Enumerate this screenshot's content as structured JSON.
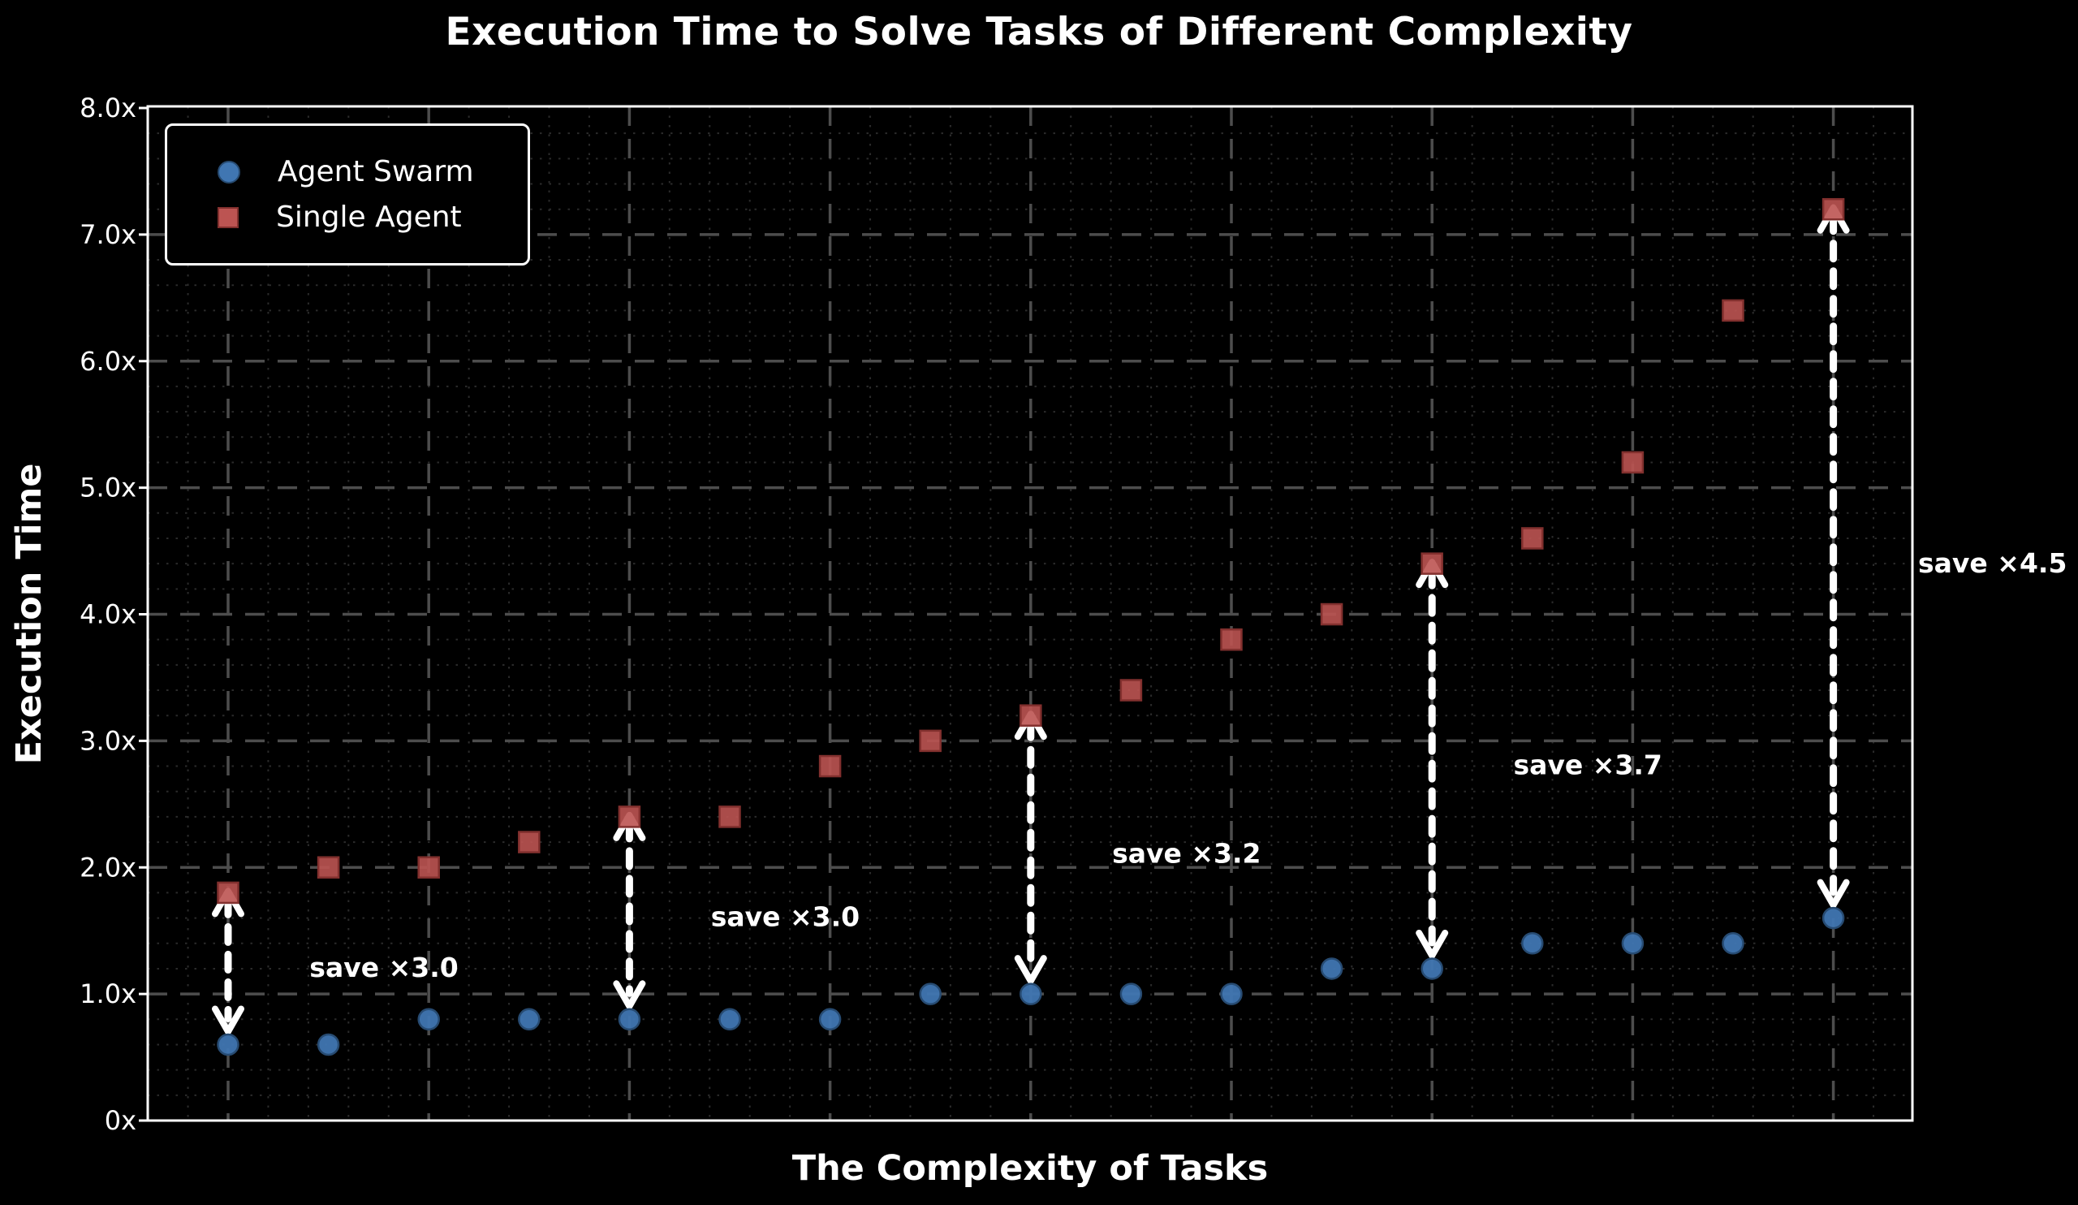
{
  "chart_data": {
    "type": "scatter",
    "title": "Execution Time to Solve Tasks of Different Complexity",
    "xlabel": "The Complexity of Tasks",
    "ylabel": "Execution Time",
    "x": [
      1,
      2,
      3,
      4,
      5,
      6,
      7,
      8,
      9,
      10,
      11,
      12,
      13,
      14,
      15,
      16,
      17
    ],
    "series": [
      {
        "name": "Agent Swarm",
        "marker": "circle",
        "color": "#4076b2",
        "edge_color": "#274b72",
        "values": [
          0.6,
          0.6,
          0.8,
          0.8,
          0.8,
          0.8,
          0.8,
          1.0,
          1.0,
          1.0,
          1.0,
          1.2,
          1.2,
          1.4,
          1.4,
          1.4,
          1.6
        ]
      },
      {
        "name": "Single Agent",
        "marker": "square",
        "color": "#bc5452",
        "edge_color": "#82302e",
        "values": [
          1.8,
          2.0,
          2.0,
          2.2,
          2.4,
          2.4,
          2.8,
          3.0,
          3.2,
          3.4,
          3.8,
          4.0,
          4.4,
          4.6,
          5.2,
          6.4,
          7.2
        ]
      }
    ],
    "annotations": [
      {
        "col": 1,
        "label": "save ×3.0"
      },
      {
        "col": 5,
        "label": "save ×3.0"
      },
      {
        "col": 9,
        "label": "save ×3.2"
      },
      {
        "col": 13,
        "label": "save ×3.7"
      },
      {
        "col": 17,
        "label": "save ×4.5",
        "outside": true
      }
    ],
    "y_ticks": [
      {
        "value": 8,
        "label": "8.0x"
      },
      {
        "value": 7,
        "label": "7.0x"
      },
      {
        "value": 6,
        "label": "6.0x"
      },
      {
        "value": 5,
        "label": "5.0x"
      },
      {
        "value": 4,
        "label": "4.0x"
      },
      {
        "value": 3,
        "label": "3.0x"
      },
      {
        "value": 2,
        "label": "2.0x"
      },
      {
        "value": 1,
        "label": "1.0x"
      },
      {
        "value": 0,
        "label": "0x"
      }
    ],
    "ylim": [
      0,
      8
    ],
    "xlim": [
      0.2,
      17.8
    ],
    "grid": {
      "major": true,
      "minor": true,
      "major_color": "#4d4d4d",
      "minor_color": "#2b2b2b"
    },
    "legend_position": "upper left",
    "arrow_color": "#ffffff",
    "background": "#000000",
    "text_color": "#ffffff",
    "frame_color": "#ffffff"
  }
}
